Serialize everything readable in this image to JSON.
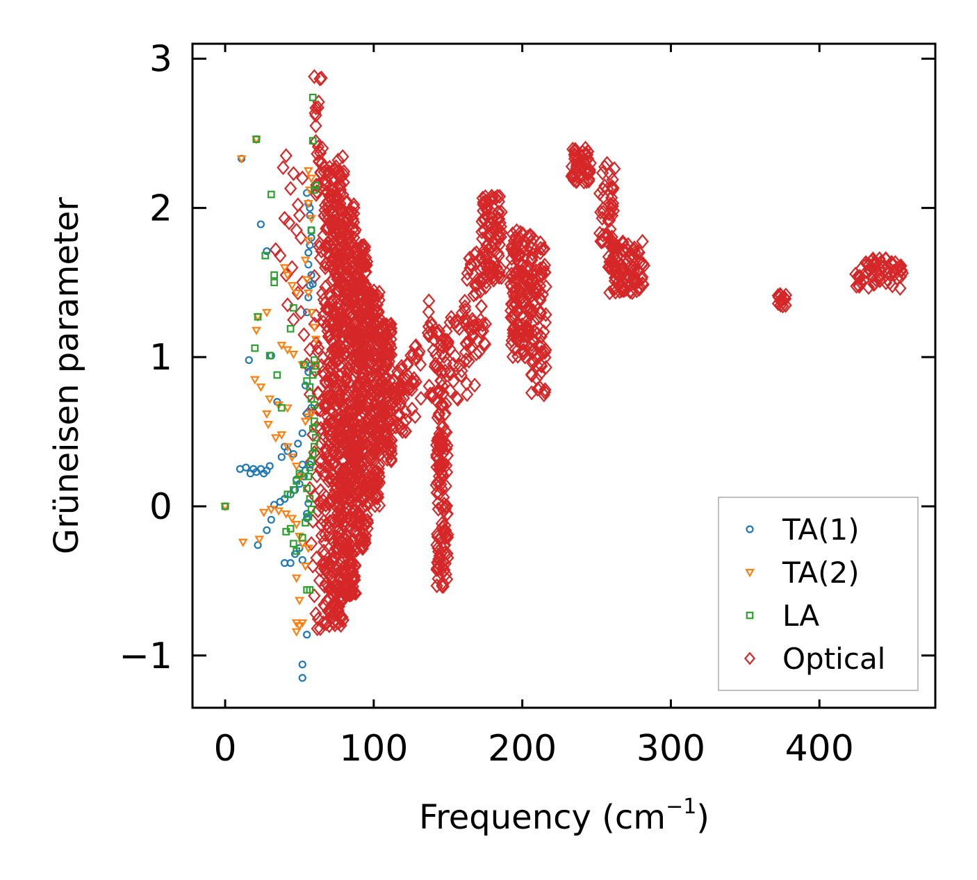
{
  "chart_data": {
    "type": "scatter",
    "xlabel": "Frequency (cm",
    "xlabel_sup": "−1",
    "xlabel_close": ")",
    "ylabel": "Grüneisen parameter",
    "xlim": [
      -22,
      478
    ],
    "ylim": [
      -1.35,
      3.1
    ],
    "xticks": [
      0,
      100,
      200,
      300,
      400
    ],
    "xtick_labels": [
      "0",
      "100",
      "200",
      "300",
      "400"
    ],
    "yticks": [
      -1,
      0,
      1,
      2,
      3
    ],
    "ytick_labels": [
      "−1",
      "0",
      "1",
      "2",
      "3"
    ],
    "legend_position": "lower-right",
    "series": [
      {
        "name": "TA(1)",
        "marker": "circle",
        "color": "#1f77b4",
        "points": [
          [
            0,
            0
          ],
          [
            10,
            0.25
          ],
          [
            14,
            0.26
          ],
          [
            17,
            0.22
          ],
          [
            19,
            0.25
          ],
          [
            21,
            0.23
          ],
          [
            24,
            0.25
          ],
          [
            26,
            0.22
          ],
          [
            28,
            0.24
          ],
          [
            30,
            0.27
          ],
          [
            11,
            2.33
          ],
          [
            21,
            2.46
          ],
          [
            24,
            1.89
          ],
          [
            28,
            1.71
          ],
          [
            16,
            0.98
          ],
          [
            31,
            1.01
          ],
          [
            35,
            0.7
          ],
          [
            38,
            0.33
          ],
          [
            40,
            0.4
          ],
          [
            42,
            0.37
          ],
          [
            46,
            0.35
          ],
          [
            49,
            0.42
          ],
          [
            52,
            0.49
          ],
          [
            55,
            0.62
          ],
          [
            58,
            0.66
          ],
          [
            22,
            -0.26
          ],
          [
            28,
            -0.16
          ],
          [
            31,
            -0.09
          ],
          [
            33,
            0.01
          ],
          [
            37,
            0.03
          ],
          [
            40,
            0.05
          ],
          [
            44,
            0.08
          ],
          [
            47,
            0.11
          ],
          [
            50,
            0.15
          ],
          [
            53,
            0.2
          ],
          [
            40,
            -0.38
          ],
          [
            44,
            -0.38
          ],
          [
            47,
            -0.32
          ],
          [
            50,
            -0.28
          ],
          [
            52,
            -0.36
          ],
          [
            52,
            -1.06
          ],
          [
            52,
            -1.15
          ],
          [
            55,
            -0.86
          ],
          [
            55,
            -0.05
          ],
          [
            56,
            0.02
          ],
          [
            48,
            0.18
          ],
          [
            51,
            0.21
          ],
          [
            54,
            0.24
          ],
          [
            57,
            0.28
          ],
          [
            55,
            1.3
          ],
          [
            56,
            1.4
          ],
          [
            57,
            1.48
          ],
          [
            58,
            1.55
          ],
          [
            56,
            1.62
          ],
          [
            57,
            1.75
          ],
          [
            58,
            1.85
          ],
          [
            57,
            1.95
          ],
          [
            56,
            2.03
          ],
          [
            55,
            2.1
          ],
          [
            57,
            2.0
          ],
          [
            58,
            1.8
          ],
          [
            56,
            1.7
          ],
          [
            59,
            1.49
          ],
          [
            54,
            0.81
          ],
          [
            56,
            0.9
          ],
          [
            58,
            0.95
          ],
          [
            52,
            0.28
          ],
          [
            55,
            -0.08
          ]
        ]
      },
      {
        "name": "TA(2)",
        "marker": "triangle-down",
        "color": "#ff7f0e",
        "points": [
          [
            0,
            0
          ],
          [
            11,
            2.33
          ],
          [
            21,
            2.46
          ],
          [
            28,
            1.3
          ],
          [
            22,
            1.27
          ],
          [
            21,
            1.18
          ],
          [
            20,
            0.85
          ],
          [
            24,
            0.8
          ],
          [
            28,
            0.62
          ],
          [
            29,
            0.55
          ],
          [
            34,
            0.46
          ],
          [
            38,
            0.48
          ],
          [
            42,
            0.4
          ],
          [
            45,
            0.33
          ],
          [
            48,
            0.27
          ],
          [
            51,
            0.2
          ],
          [
            12,
            -0.24
          ],
          [
            23,
            -0.22
          ],
          [
            26,
            -0.04
          ],
          [
            31,
            -0.02
          ],
          [
            36,
            -0.03
          ],
          [
            41,
            -0.05
          ],
          [
            45,
            -0.08
          ],
          [
            48,
            -0.12
          ],
          [
            50,
            -0.2
          ],
          [
            52,
            -0.25
          ],
          [
            48,
            -0.48
          ],
          [
            50,
            -0.63
          ],
          [
            48,
            -0.78
          ],
          [
            50,
            -0.8
          ],
          [
            52,
            -0.78
          ],
          [
            48,
            -0.84
          ],
          [
            54,
            0.57
          ],
          [
            56,
            0.6
          ],
          [
            58,
            0.62
          ],
          [
            60,
            0.95
          ],
          [
            61,
            1.12
          ],
          [
            60,
            1.2
          ],
          [
            58,
            1.3
          ],
          [
            56,
            1.43
          ],
          [
            55,
            1.52
          ],
          [
            54,
            1.65
          ],
          [
            56,
            1.78
          ],
          [
            58,
            1.93
          ],
          [
            56,
            2.03
          ],
          [
            57,
            2.12
          ],
          [
            58,
            2.2
          ],
          [
            56,
            2.25
          ],
          [
            40,
            1.6
          ],
          [
            42,
            1.55
          ],
          [
            45,
            1.48
          ],
          [
            48,
            1.43
          ],
          [
            38,
            1.08
          ],
          [
            42,
            1.05
          ],
          [
            46,
            1.02
          ],
          [
            52,
            0.95
          ],
          [
            30,
            0.72
          ],
          [
            36,
            0.68
          ],
          [
            42,
            0.66
          ],
          [
            54,
            -0.4
          ],
          [
            56,
            -0.28
          ]
        ]
      },
      {
        "name": "LA",
        "marker": "square",
        "color": "#2ca02c",
        "points": [
          [
            0,
            0
          ],
          [
            21,
            2.46
          ],
          [
            31,
            2.09
          ],
          [
            27,
            1.68
          ],
          [
            33,
            1.55
          ],
          [
            33,
            1.5
          ],
          [
            22,
            1.27
          ],
          [
            20,
            1.06
          ],
          [
            30,
            1.01
          ],
          [
            35,
            0.88
          ],
          [
            38,
            0.66
          ],
          [
            44,
            1.19
          ],
          [
            46,
            1.33
          ],
          [
            53,
            0.95
          ],
          [
            55,
            0.84
          ],
          [
            57,
            0.8
          ],
          [
            58,
            0.72
          ],
          [
            60,
            0.68
          ],
          [
            60,
            0.57
          ],
          [
            59,
            0.52
          ],
          [
            61,
            0.46
          ],
          [
            60,
            0.4
          ],
          [
            59,
            0.35
          ],
          [
            58,
            0.3
          ],
          [
            57,
            0.26
          ],
          [
            56,
            0.2
          ],
          [
            55,
            0.12
          ],
          [
            57,
            0.05
          ],
          [
            58,
            -0.02
          ],
          [
            56,
            -0.07
          ],
          [
            54,
            -0.11
          ],
          [
            52,
            -0.21
          ],
          [
            55,
            -0.56
          ],
          [
            57,
            -0.56
          ],
          [
            59,
            2.74
          ],
          [
            59,
            2.45
          ],
          [
            61,
            2.15
          ],
          [
            60,
            2.12
          ],
          [
            58,
            1.85
          ],
          [
            60,
            0.98
          ],
          [
            61,
            0.94
          ],
          [
            59,
            0.88
          ],
          [
            46,
            0.11
          ],
          [
            48,
            0.17
          ],
          [
            50,
            0.22
          ],
          [
            42,
            0.08
          ],
          [
            44,
            -0.15
          ],
          [
            41,
            -0.17
          ],
          [
            46,
            -0.25
          ],
          [
            48,
            -0.3
          ]
        ]
      }
    ],
    "optical_regions": [
      {
        "x": [
          60,
          66
        ],
        "y": [
          -0.84,
          2.88
        ],
        "n": 60
      },
      {
        "x": [
          66,
          72
        ],
        "y": [
          -0.8,
          2.3
        ],
        "n": 160
      },
      {
        "x": [
          72,
          80
        ],
        "y": [
          -0.8,
          2.35
        ],
        "n": 320
      },
      {
        "x": [
          80,
          88
        ],
        "y": [
          -0.6,
          2.05
        ],
        "n": 300
      },
      {
        "x": [
          88,
          96
        ],
        "y": [
          -0.3,
          1.75
        ],
        "n": 260
      },
      {
        "x": [
          96,
          104
        ],
        "y": [
          0.0,
          1.45
        ],
        "n": 180
      },
      {
        "x": [
          104,
          112
        ],
        "y": [
          0.3,
          1.25
        ],
        "n": 110
      },
      {
        "x": [
          112,
          122
        ],
        "y": [
          0.5,
          0.95
        ],
        "n": 40
      },
      {
        "x": [
          122,
          132
        ],
        "y": [
          0.6,
          1.08
        ],
        "n": 24
      },
      {
        "x": [
          136,
          142
        ],
        "y": [
          0.7,
          1.38
        ],
        "n": 18
      },
      {
        "x": [
          142,
          150
        ],
        "y": [
          -0.55,
          0.5
        ],
        "n": 110
      },
      {
        "x": [
          142,
          152
        ],
        "y": [
          0.5,
          1.2
        ],
        "n": 40
      },
      {
        "x": [
          150,
          168
        ],
        "y": [
          0.7,
          1.3
        ],
        "n": 30
      },
      {
        "x": [
          160,
          176
        ],
        "y": [
          1.0,
          1.72
        ],
        "n": 50
      },
      {
        "x": [
          172,
          186
        ],
        "y": [
          1.5,
          2.08
        ],
        "n": 90
      },
      {
        "x": [
          192,
          208
        ],
        "y": [
          1.0,
          1.85
        ],
        "n": 150
      },
      {
        "x": [
          206,
          216
        ],
        "y": [
          0.72,
          1.78
        ],
        "n": 70
      },
      {
        "x": [
          233,
          246
        ],
        "y": [
          2.17,
          2.4
        ],
        "n": 50
      },
      {
        "x": [
          252,
          262
        ],
        "y": [
          1.7,
          2.3
        ],
        "n": 45
      },
      {
        "x": [
          258,
          282
        ],
        "y": [
          1.43,
          1.78
        ],
        "n": 100
      },
      {
        "x": [
          372,
          378
        ],
        "y": [
          1.34,
          1.42
        ],
        "n": 18
      },
      {
        "x": [
          424,
          456
        ],
        "y": [
          1.46,
          1.67
        ],
        "n": 60
      }
    ],
    "optical_extra_points": [
      [
        60,
        2.88
      ],
      [
        61,
        2.67
      ],
      [
        61,
        2.62
      ],
      [
        61,
        2.55
      ],
      [
        41,
        2.35
      ],
      [
        39,
        2.27
      ],
      [
        46,
        2.23
      ],
      [
        52,
        2.2
      ],
      [
        44,
        2.13
      ],
      [
        49,
        2.02
      ],
      [
        50,
        1.95
      ],
      [
        40,
        1.93
      ],
      [
        43,
        1.9
      ],
      [
        48,
        1.85
      ],
      [
        51,
        1.8
      ],
      [
        34,
        1.72
      ],
      [
        37,
        1.68
      ],
      [
        45,
        1.6
      ],
      [
        41,
        1.55
      ],
      [
        52,
        1.5
      ],
      [
        49,
        1.43
      ],
      [
        42,
        1.35
      ],
      [
        51,
        1.3
      ],
      [
        46,
        1.25
      ],
      [
        53,
        1.15
      ],
      [
        57,
        1.05
      ],
      [
        55,
        0.95
      ],
      [
        57,
        0.75
      ],
      [
        56,
        0.62
      ],
      [
        59,
        0.48
      ],
      [
        58,
        0.3
      ],
      [
        57,
        0.12
      ],
      [
        59,
        -0.1
      ],
      [
        58,
        -0.25
      ],
      [
        59,
        -0.4
      ],
      [
        60,
        -0.6
      ],
      [
        61,
        -0.72
      ],
      [
        62,
        -0.82
      ],
      [
        66,
        -0.78
      ],
      [
        70,
        -0.8
      ],
      [
        74,
        -0.55
      ]
    ],
    "legend": [
      {
        "label": "TA(1)",
        "marker": "circle",
        "color": "#1f77b4"
      },
      {
        "label": "TA(2)",
        "marker": "triangle-down",
        "color": "#ff7f0e"
      },
      {
        "label": "LA",
        "marker": "square",
        "color": "#2ca02c"
      },
      {
        "label": "Optical",
        "marker": "diamond",
        "color": "#d62728"
      }
    ]
  }
}
